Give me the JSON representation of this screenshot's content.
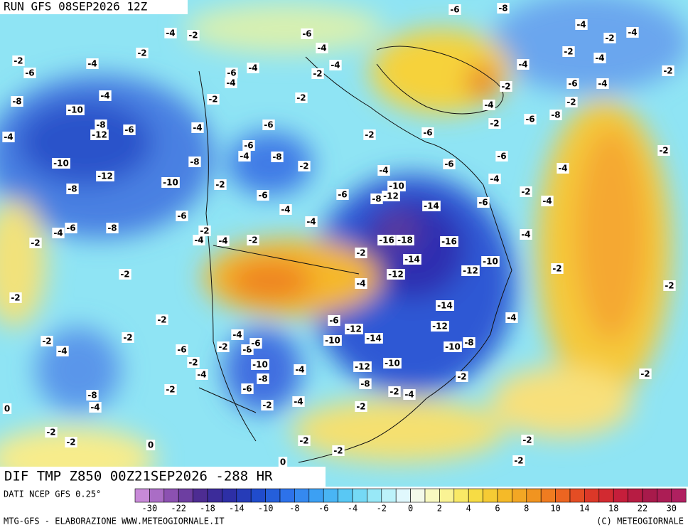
{
  "header": {
    "run": "RUN GFS 08SEP2026 12Z"
  },
  "map": {
    "title": "DIF TMP Z850 00Z21SEP2026 -288 HR",
    "contour_labels": [
      -4,
      -2,
      -6,
      -4,
      -2,
      -4,
      -2,
      -6,
      -6,
      -4,
      -4,
      -2,
      -4,
      -4,
      -8,
      -2,
      -2,
      -10,
      -8,
      -12,
      -6,
      -4,
      -4,
      -6,
      -6,
      -4,
      -8,
      -2,
      -8,
      -10,
      -12,
      -2,
      -10,
      -8,
      -6,
      -4,
      -4,
      -6,
      -8,
      -6,
      -4,
      -2,
      -2,
      -4,
      -4,
      -2,
      -2,
      -2,
      -6,
      -2,
      -4,
      -10,
      -8,
      -12,
      -14,
      -16,
      -18,
      -16,
      -2,
      -14,
      -12,
      -12,
      -10,
      -4,
      -14,
      -12,
      -6,
      -12,
      -10,
      -14,
      -10,
      -8,
      -12,
      -10,
      -8,
      -2,
      -2,
      -2,
      -4,
      -6,
      -2,
      -4,
      -8,
      -6,
      -10,
      -2,
      -4,
      -4,
      -8,
      -6,
      -2,
      -8,
      -4,
      0,
      -2,
      -4,
      -2,
      -4,
      -2,
      -2,
      -2,
      0,
      -2,
      -2,
      0,
      -2,
      -2,
      -2,
      -2,
      -2,
      -2,
      -4,
      -4,
      -4,
      -2,
      -4,
      -2,
      -6,
      -6,
      -4,
      -6,
      -6,
      -2,
      -6,
      -8,
      -2,
      -6,
      -4,
      -2,
      -4,
      -4,
      -2,
      -4,
      -2,
      -4,
      -4,
      -2,
      -6,
      -8
    ]
  },
  "legend": {
    "source": "DATI NCEP GFS 0.25°",
    "ticks": [
      -30,
      -22,
      -18,
      -14,
      -10,
      -8,
      -6,
      -4,
      -2,
      0,
      2,
      4,
      6,
      8,
      10,
      14,
      18,
      22,
      30
    ]
  },
  "footer": {
    "left": "MTG-GFS - ELABORAZIONE WWW.METEOGIORNALE.IT",
    "right": "(C) METEOGIORNALE"
  }
}
